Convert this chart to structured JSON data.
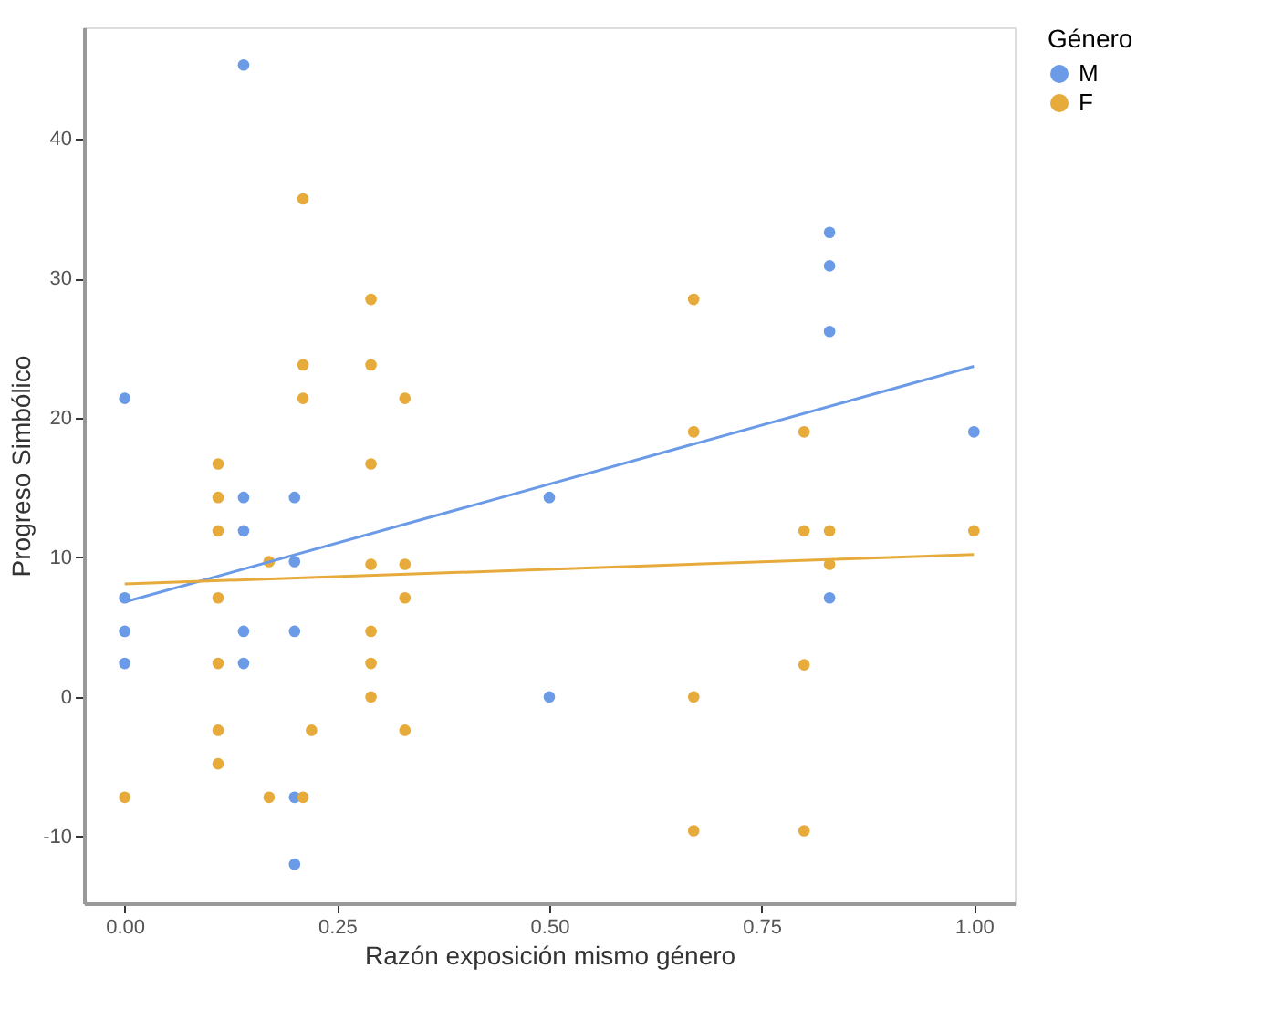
{
  "chart_data": {
    "type": "scatter",
    "xlabel": "Razón exposición mismo género",
    "ylabel": "Progreso Simbólico",
    "legend_title": "Género",
    "legend": "right",
    "marker": "circle",
    "grid": false,
    "xlim": [
      -0.048,
      1.048
    ],
    "ylim": [
      -14.8,
      48
    ],
    "xticks": [
      {
        "value": 0,
        "label": "0.00"
      },
      {
        "value": 0.25,
        "label": "0.25"
      },
      {
        "value": 0.5,
        "label": "0.50"
      },
      {
        "value": 0.75,
        "label": "0.75"
      },
      {
        "value": 1,
        "label": "1.00"
      }
    ],
    "yticks": [
      -10,
      0,
      10,
      20,
      30,
      40
    ],
    "series": [
      {
        "name": "M",
        "color": "#6b9ae6",
        "x": [
          0.14,
          0,
          0,
          0,
          0,
          0.14,
          0.14,
          0.14,
          0.14,
          0.2,
          0.2,
          0.2,
          0.2,
          0.2,
          0.5,
          0.5,
          0.83,
          0.83,
          0.83,
          0.83,
          1.0
        ],
        "values": [
          45.3,
          21.4,
          7.1,
          4.7,
          2.4,
          14.3,
          11.9,
          4.7,
          2.4,
          14.3,
          9.7,
          4.7,
          -7.2,
          -12.0,
          14.3,
          0,
          33.3,
          30.9,
          26.2,
          7.1,
          19.0
        ]
      },
      {
        "name": "F",
        "color": "#e6ab3b",
        "x": [
          0.11,
          0.11,
          0.11,
          0.11,
          0.11,
          0.11,
          0.11,
          0,
          0.17,
          0.17,
          0.21,
          0.22,
          0.29,
          0.29,
          0.29,
          0.29,
          0.29,
          0.33,
          0.33,
          0.33,
          0.21,
          0.29,
          0.21,
          0.29,
          0.21,
          0.33,
          0.67,
          0.67,
          0.8,
          0.8,
          0.83,
          1.0,
          0.83,
          0.8,
          0.67,
          0.67,
          0.8
        ],
        "values": [
          16.7,
          14.3,
          11.9,
          7.1,
          2.4,
          -2.4,
          -4.8,
          -7.2,
          9.7,
          -7.2,
          -7.2,
          -2.4,
          16.7,
          9.5,
          4.7,
          2.4,
          0,
          9.5,
          7.1,
          -2.4,
          35.7,
          28.5,
          23.8,
          23.8,
          21.4,
          21.4,
          28.5,
          19.0,
          19.0,
          11.9,
          11.9,
          11.9,
          9.5,
          2.3,
          0,
          -9.6,
          -9.6
        ]
      },
      {
        "type": "line",
        "marker": "none",
        "color": "#6b9ae6",
        "x": [
          0,
          1
        ],
        "values": [
          6.8,
          23.7
        ]
      },
      {
        "type": "line",
        "marker": "none",
        "color": "#e6ab3b",
        "x": [
          0,
          1
        ],
        "values": [
          8.1,
          10.2
        ]
      }
    ]
  }
}
